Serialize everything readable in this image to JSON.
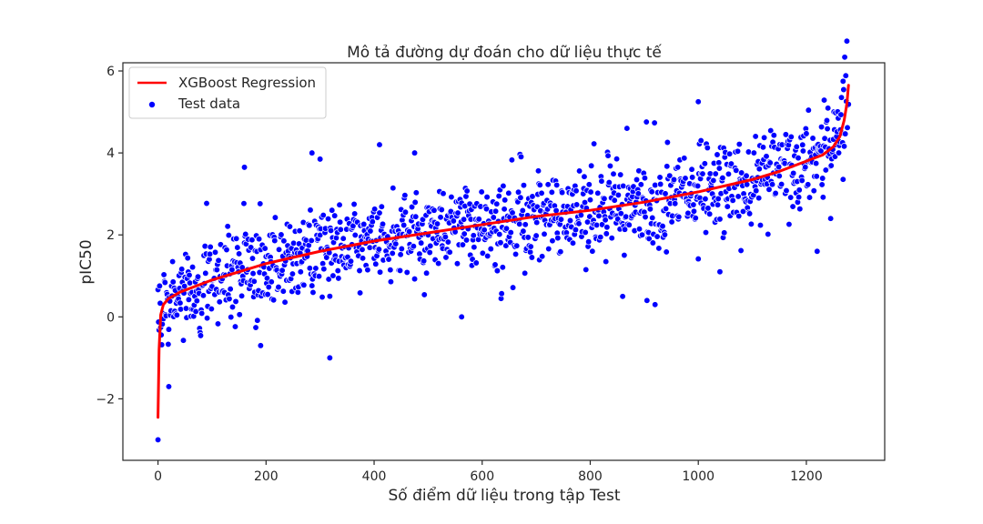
{
  "chart_data": {
    "type": "scatter",
    "title": "Mô tả đường dự đoán cho dữ liệu thực tế",
    "xlabel": "Số điểm dữ liệu trong tập Test",
    "ylabel": "pIC50",
    "xlim": [
      -65,
      1345
    ],
    "ylim": [
      -3.5,
      6.2
    ],
    "xticks": [
      0,
      200,
      400,
      600,
      800,
      1000,
      1200
    ],
    "yticks": [
      -2,
      0,
      2,
      4,
      6
    ],
    "grid": false,
    "legend_position": "top-left",
    "legend": [
      "XGBoost Regression",
      "Test data"
    ],
    "series": [
      {
        "name": "XGBoost Regression",
        "kind": "line",
        "color": "#ff0000",
        "x": [
          0,
          2,
          5,
          10,
          20,
          40,
          70,
          100,
          150,
          200,
          300,
          400,
          500,
          600,
          700,
          800,
          900,
          1000,
          1100,
          1150,
          1200,
          1230,
          1250,
          1262,
          1270,
          1275,
          1278
        ],
        "y": [
          -2.45,
          -0.8,
          0.05,
          0.3,
          0.45,
          0.6,
          0.75,
          0.9,
          1.1,
          1.3,
          1.6,
          1.85,
          2.05,
          2.25,
          2.45,
          2.6,
          2.8,
          3.05,
          3.35,
          3.55,
          3.8,
          3.95,
          4.15,
          4.4,
          4.8,
          5.2,
          5.65
        ]
      },
      {
        "name": "Test data",
        "kind": "scatter",
        "color": "#0000ff",
        "n_points": 1279,
        "x_range": [
          0,
          1278
        ],
        "note_points": "points scatter around the regression curve with spread of roughly ±1 unit; notable outliers listed",
        "outliers": {
          "x": [
            0,
            20,
            190,
            318,
            160,
            285,
            300,
            410,
            475,
            562,
            860,
            905,
            920,
            1005,
            1040,
            1220,
            1245,
            1268,
            868,
            1000
          ],
          "y": [
            -3.0,
            -1.7,
            -0.7,
            -1.0,
            3.65,
            4.0,
            3.85,
            4.2,
            4.0,
            0.0,
            0.5,
            0.4,
            0.3,
            4.3,
            1.1,
            1.6,
            2.4,
            5.75,
            4.6,
            5.25
          ]
        }
      }
    ]
  },
  "colors": {
    "regression_line": "#ff0000",
    "points": "#0000ff",
    "axes": "#262626"
  }
}
